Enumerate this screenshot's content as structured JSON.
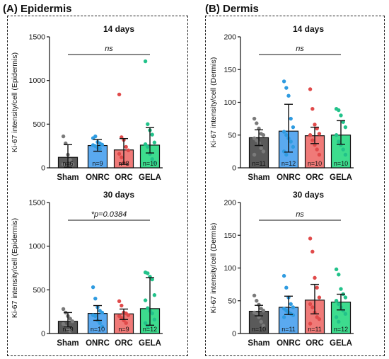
{
  "panels": [
    {
      "title": "(A) Epidermis"
    },
    {
      "title": "(B) Dermis"
    }
  ],
  "colors": {
    "Sham": "#5a5a5a",
    "ONRC": "#5aa9f0",
    "ORC": "#f07a78",
    "GELA": "#3ddc8e",
    "dot_Sham": "#7a7a7a",
    "dot_ONRC": "#2f9be0",
    "dot_ORC": "#e04a4a",
    "dot_GELA": "#22c28a"
  },
  "chart_data": [
    {
      "type": "bar",
      "title": "14 days",
      "ylabel": "Ki-67 intensity/cell (Epidermis)",
      "categories": [
        "Sham",
        "ONRC",
        "ORC",
        "GELA"
      ],
      "values": [
        120,
        255,
        205,
        260
      ],
      "err_low": [
        5,
        190,
        40,
        170
      ],
      "err_high": [
        265,
        325,
        335,
        460
      ],
      "n_labels": [
        "n=6",
        "n=9",
        "n=8",
        "n=10"
      ],
      "points": [
        [
          360,
          280,
          150,
          90,
          40,
          40
        ],
        [
          340,
          360,
          295,
          280,
          265,
          260,
          250,
          230,
          220
        ],
        [
          840,
          350,
          320,
          240,
          200,
          160,
          120,
          60
        ],
        [
          1220,
          500,
          430,
          380,
          290,
          270,
          240,
          160,
          100,
          60
        ]
      ],
      "ylim": [
        0,
        1500
      ],
      "yticks": [
        0,
        500,
        1000,
        1500
      ],
      "annotation": "ns"
    },
    {
      "type": "bar",
      "title": "30 days",
      "ylabel": "Ki-67 intensity/cell (Epidermis)",
      "categories": [
        "Sham",
        "ONRC",
        "ORC",
        "GELA"
      ],
      "values": [
        140,
        230,
        225,
        285
      ],
      "err_low": [
        75,
        150,
        160,
        95
      ],
      "err_high": [
        240,
        320,
        280,
        640
      ],
      "n_labels": [
        "n=9",
        "n=10",
        "n=9",
        "n=12"
      ],
      "points": [
        [
          280,
          240,
          200,
          170,
          140,
          110,
          80,
          50,
          30
        ],
        [
          530,
          400,
          300,
          260,
          240,
          210,
          200,
          150,
          120,
          80
        ],
        [
          370,
          320,
          240,
          230,
          210,
          200,
          180,
          150,
          120
        ],
        [
          700,
          690,
          650,
          620,
          440,
          380,
          290,
          260,
          230,
          160,
          120,
          80
        ]
      ],
      "ylim": [
        0,
        1500
      ],
      "yticks": [
        0,
        500,
        1000,
        1500
      ],
      "annotation": "*p=0.0384"
    },
    {
      "type": "bar",
      "title": "14 days",
      "ylabel": "Ki-67 intensity/cell (Dermis)",
      "categories": [
        "Sham",
        "ONRC",
        "ORC",
        "GELA"
      ],
      "values": [
        46,
        56,
        49,
        50
      ],
      "err_low": [
        34,
        24,
        37,
        36
      ],
      "err_high": [
        58,
        97,
        62,
        72
      ],
      "n_labels": [
        "n=11",
        "n=12",
        "n=10",
        "n=10"
      ],
      "points": [
        [
          75,
          68,
          60,
          52,
          50,
          45,
          42,
          38,
          30,
          25,
          20
        ],
        [
          132,
          122,
          110,
          75,
          62,
          55,
          50,
          45,
          40,
          32,
          25,
          20
        ],
        [
          120,
          90,
          66,
          60,
          52,
          50,
          42,
          35,
          28,
          20
        ],
        [
          90,
          88,
          80,
          70,
          62,
          50,
          40,
          35,
          28,
          20
        ]
      ],
      "ylim": [
        0,
        200
      ],
      "yticks": [
        0,
        50,
        100,
        150,
        200
      ],
      "annotation": "ns"
    },
    {
      "type": "bar",
      "title": "30 days",
      "ylabel": "Ki-67 intensity/cell (Dermis)",
      "categories": [
        "Sham",
        "ONRC",
        "ORC",
        "GELA"
      ],
      "values": [
        34,
        40,
        51,
        48
      ],
      "err_low": [
        27,
        29,
        30,
        36
      ],
      "err_high": [
        43,
        57,
        75,
        60
      ],
      "n_labels": [
        "n=10",
        "n=11",
        "n=11",
        "n=12"
      ],
      "points": [
        [
          58,
          50,
          44,
          38,
          35,
          32,
          30,
          25,
          18,
          12
        ],
        [
          88,
          70,
          55,
          45,
          40,
          38,
          35,
          32,
          30,
          28,
          25
        ],
        [
          145,
          125,
          85,
          70,
          55,
          45,
          40,
          32,
          25,
          22,
          15
        ],
        [
          98,
          90,
          68,
          60,
          55,
          50,
          45,
          40,
          35,
          30,
          25,
          18
        ]
      ],
      "ylim": [
        0,
        200
      ],
      "yticks": [
        0,
        50,
        100,
        150,
        200
      ],
      "annotation": "ns"
    }
  ]
}
